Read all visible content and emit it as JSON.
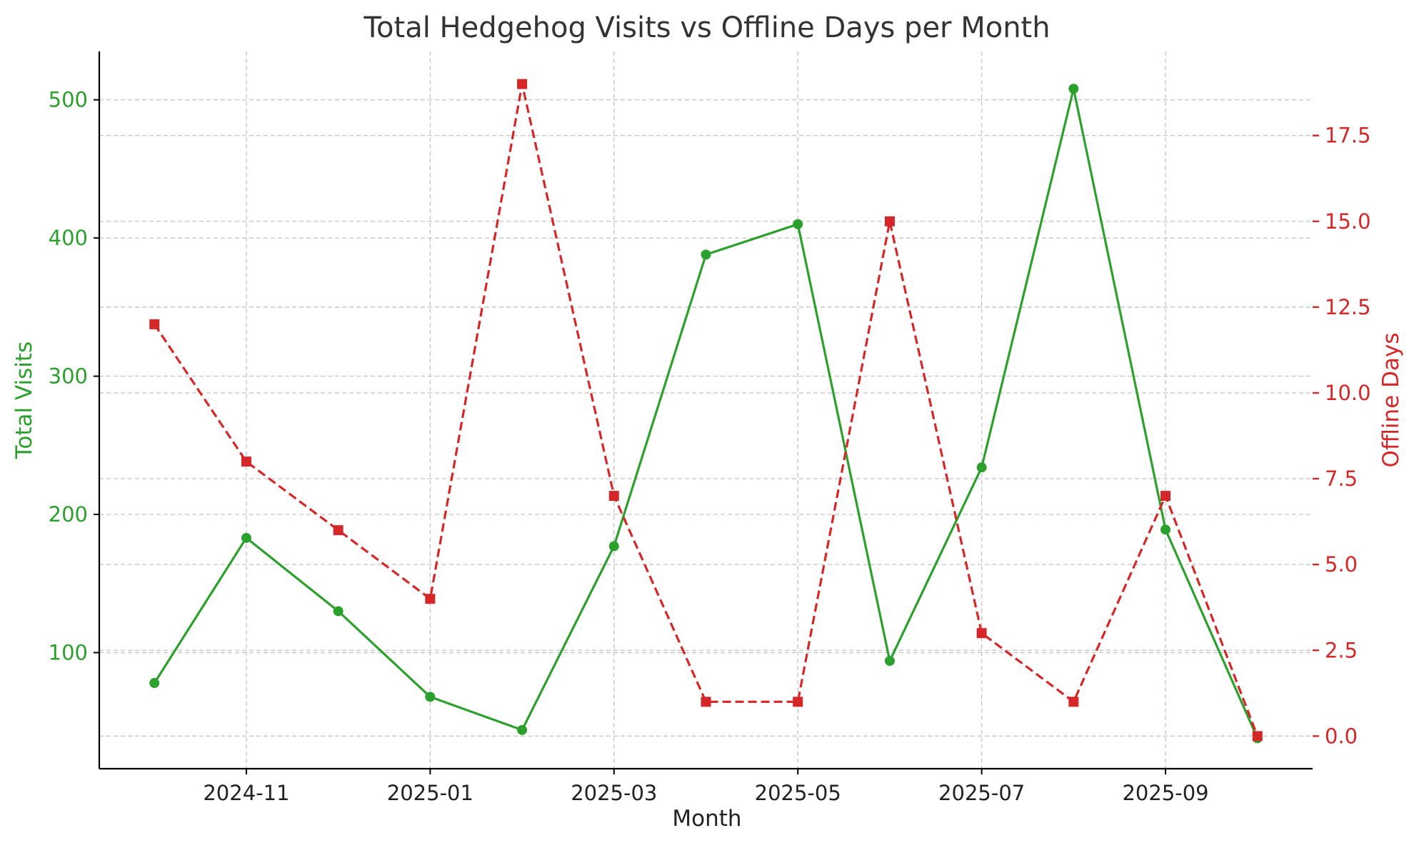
{
  "chart_data": {
    "type": "line",
    "title": "Total Hedgehog Visits vs Offline Days per Month",
    "xlabel": "Month",
    "ylabel_left": "Total Visits",
    "ylabel_right": "Offline Days",
    "x": [
      "2024-10",
      "2024-11",
      "2024-12",
      "2025-01",
      "2025-02",
      "2025-03",
      "2025-04",
      "2025-05",
      "2025-06",
      "2025-07",
      "2025-08",
      "2025-09",
      "2025-10"
    ],
    "x_ticks": [
      "2024-11",
      "2025-01",
      "2025-03",
      "2025-05",
      "2025-07",
      "2025-09"
    ],
    "series": [
      {
        "axis": "left",
        "color": "#2ca02c",
        "linestyle": "solid",
        "marker": "circle",
        "values": [
          78,
          183,
          130,
          68,
          44,
          177,
          388,
          410,
          94,
          234,
          508,
          189,
          38
        ]
      },
      {
        "axis": "right",
        "color": "#d62728",
        "linestyle": "dashed",
        "marker": "square",
        "values": [
          12,
          8,
          6,
          4,
          19,
          7,
          1,
          1,
          15,
          3,
          1,
          7,
          0
        ]
      }
    ],
    "ylim_left": [
      16,
      535
    ],
    "ylim_right": [
      -0.95,
      19.95
    ],
    "yticks_left": [
      100,
      200,
      300,
      400,
      500
    ],
    "yticks_right": [
      0.0,
      2.5,
      5.0,
      7.5,
      10.0,
      12.5,
      15.0,
      17.5
    ],
    "grid": true,
    "colors": {
      "left_axis": "#2ca02c",
      "right_axis": "#d62728"
    }
  }
}
